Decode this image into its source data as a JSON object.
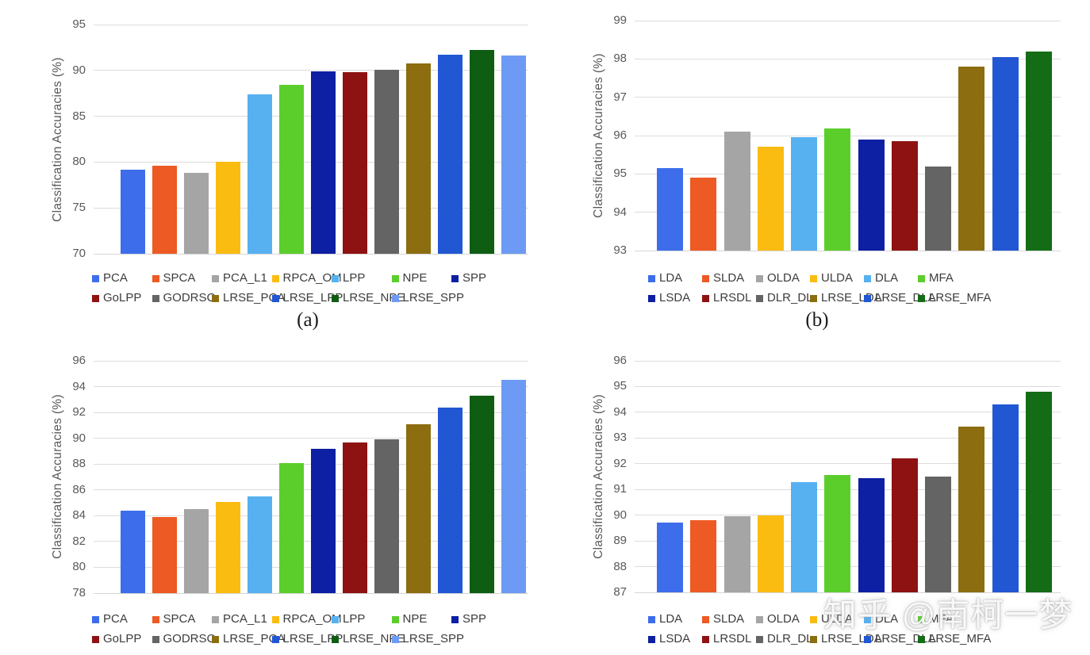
{
  "watermark": {
    "text": "知乎 @南柯一梦"
  },
  "chart_data": [
    {
      "type": "bar",
      "panel": "a",
      "caption": "(a)",
      "ylabel": "Classification Accuracies  (%)",
      "ylim": [
        70,
        95
      ],
      "ystep": 5,
      "grid": true,
      "legend_position": "bottom",
      "legend_row_split": [
        7,
        6
      ],
      "categories": [
        "PCA",
        "SPCA",
        "PCA_L1",
        "RPCA_OM",
        "LPP",
        "NPE",
        "SPP",
        "GoLPP",
        "GODRSC",
        "LRSE_PCA",
        "LRSE_LPP",
        "LRSE_NPE",
        "LRSE_SPP"
      ],
      "values": [
        79.2,
        79.6,
        78.85,
        80.0,
        87.4,
        88.4,
        89.9,
        89.8,
        90.05,
        90.8,
        91.75,
        92.2,
        91.6
      ],
      "colors": [
        "#3D6DEB",
        "#ED5A24",
        "#A5A5A5",
        "#FBBC12",
        "#57B1F1",
        "#5CCE2C",
        "#0D1FA3",
        "#8E1212",
        "#646464",
        "#8C6D10",
        "#2257D3",
        "#0E5D13",
        "#6D9AF4"
      ]
    },
    {
      "type": "bar",
      "panel": "b",
      "caption": "(b)",
      "ylabel": "Classification Accuracies (%)",
      "ylim": [
        93,
        99
      ],
      "ystep": 1,
      "grid": true,
      "legend_position": "bottom",
      "legend_row_split": [
        6,
        6
      ],
      "categories": [
        "LDA",
        "SLDA",
        "OLDA",
        "ULDA",
        "DLA",
        "MFA",
        "LSDA",
        "LRSDL",
        "DLR_DL",
        "LRSE_LDA",
        "LRSE_DLA",
        "LRSE_MFA"
      ],
      "values": [
        95.15,
        94.9,
        96.1,
        95.72,
        95.97,
        96.18,
        95.9,
        95.85,
        95.2,
        97.8,
        98.05,
        98.2
      ],
      "colors": [
        "#3D6DEB",
        "#ED5A24",
        "#A5A5A5",
        "#FBBC12",
        "#57B1F1",
        "#5CCE2C",
        "#0D1FA3",
        "#8E1212",
        "#646464",
        "#8C6D10",
        "#2257D3",
        "#146D16"
      ]
    },
    {
      "type": "bar",
      "panel": "c",
      "caption": "",
      "ylabel": "Classification Accuracies  (%)",
      "ylim": [
        78,
        96
      ],
      "ystep": 2,
      "grid": true,
      "legend_position": "bottom",
      "legend_row_split": [
        7,
        6
      ],
      "categories": [
        "PCA",
        "SPCA",
        "PCA_L1",
        "RPCA_OM",
        "LPP",
        "NPE",
        "SPP",
        "GoLPP",
        "GODRSC",
        "LRSE_PCA",
        "LRSE_LPP",
        "LRSE_NPE",
        "LRSE_SPP"
      ],
      "values": [
        84.4,
        83.9,
        84.5,
        85.05,
        85.5,
        88.05,
        89.2,
        89.7,
        89.9,
        91.1,
        92.35,
        93.3,
        94.5
      ],
      "colors": [
        "#3D6DEB",
        "#ED5A24",
        "#A5A5A5",
        "#FBBC12",
        "#57B1F1",
        "#5CCE2C",
        "#0D1FA3",
        "#8E1212",
        "#646464",
        "#8C6D10",
        "#2257D3",
        "#0E5D13",
        "#6D9AF4"
      ]
    },
    {
      "type": "bar",
      "panel": "d",
      "caption": "",
      "ylabel": "Classification Accuracies (%)",
      "ylim": [
        87,
        96
      ],
      "ystep": 1,
      "grid": true,
      "legend_position": "bottom",
      "legend_row_split": [
        6,
        6
      ],
      "categories": [
        "LDA",
        "SLDA",
        "OLDA",
        "ULDA",
        "DLA",
        "MFA",
        "LSDA",
        "LRSDL",
        "DLR_DL",
        "LRSE_LDA",
        "LRSE_DLA",
        "LRSE_MFA"
      ],
      "values": [
        89.7,
        89.8,
        89.95,
        90.0,
        91.3,
        91.55,
        91.45,
        92.2,
        91.5,
        93.45,
        94.3,
        94.8
      ],
      "colors": [
        "#3D6DEB",
        "#ED5A24",
        "#A5A5A5",
        "#FBBC12",
        "#57B1F1",
        "#5CCE2C",
        "#0D1FA3",
        "#8E1212",
        "#646464",
        "#8C6D10",
        "#2257D3",
        "#146D16"
      ]
    }
  ]
}
